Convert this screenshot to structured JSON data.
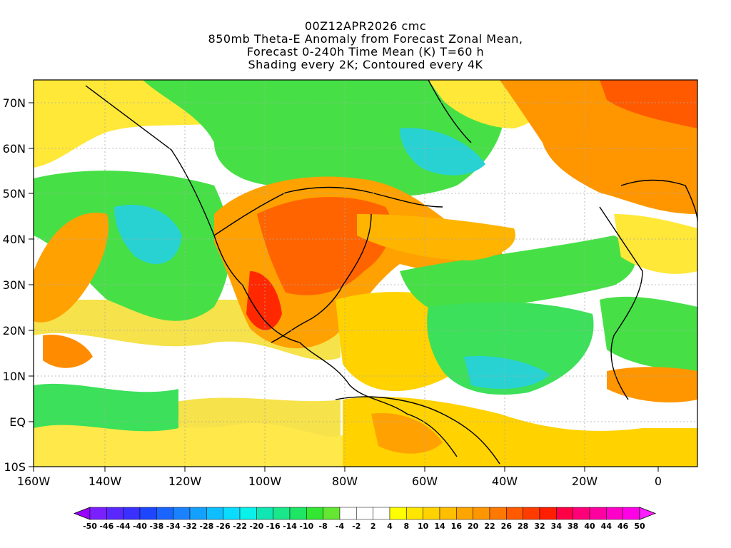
{
  "header": {
    "line1": "00Z12APR2026 cmc",
    "line2": "850mb Theta-E Anomaly from Forecast Zonal Mean,",
    "line3": "Forecast 0-240h Time Mean (K) T=60 h",
    "line4": "Shading every 2K; Contoured every 4K"
  },
  "map": {
    "lat_labels": [
      "70N",
      "60N",
      "50N",
      "40N",
      "30N",
      "20N",
      "10N",
      "EQ",
      "10S"
    ],
    "lon_labels": [
      "160W",
      "140W",
      "120W",
      "100W",
      "80W",
      "60W",
      "40W",
      "20W",
      "0"
    ]
  },
  "colorbar": {
    "labels": [
      "-50",
      "-46",
      "-44",
      "-40",
      "-38",
      "-34",
      "-32",
      "-28",
      "-26",
      "-22",
      "-20",
      "-16",
      "-14",
      "-10",
      "-8",
      "-4",
      "-2",
      "2",
      "4",
      "8",
      "10",
      "14",
      "16",
      "20",
      "22",
      "26",
      "28",
      "32",
      "34",
      "38",
      "40",
      "44",
      "46",
      "50"
    ],
    "colors": [
      "#9a00ff",
      "#7a20ff",
      "#5a28ff",
      "#3a30ff",
      "#1e46ff",
      "#1a64ff",
      "#1a82ff",
      "#14a0ff",
      "#0ebeff",
      "#0adcff",
      "#0af0ea",
      "#10e6b4",
      "#1ae68a",
      "#1ee664",
      "#32e632",
      "#64e632",
      "#ffffff",
      "#ffffff",
      "#ffffff",
      "#ffff00",
      "#ffe600",
      "#ffd200",
      "#ffbe00",
      "#ffa500",
      "#ff9600",
      "#ff7800",
      "#ff5a00",
      "#ff3c00",
      "#ff1e00",
      "#ff0046",
      "#ff0078",
      "#ff00a0",
      "#ff00c8",
      "#ff00e6",
      "#ff1eff"
    ]
  }
}
